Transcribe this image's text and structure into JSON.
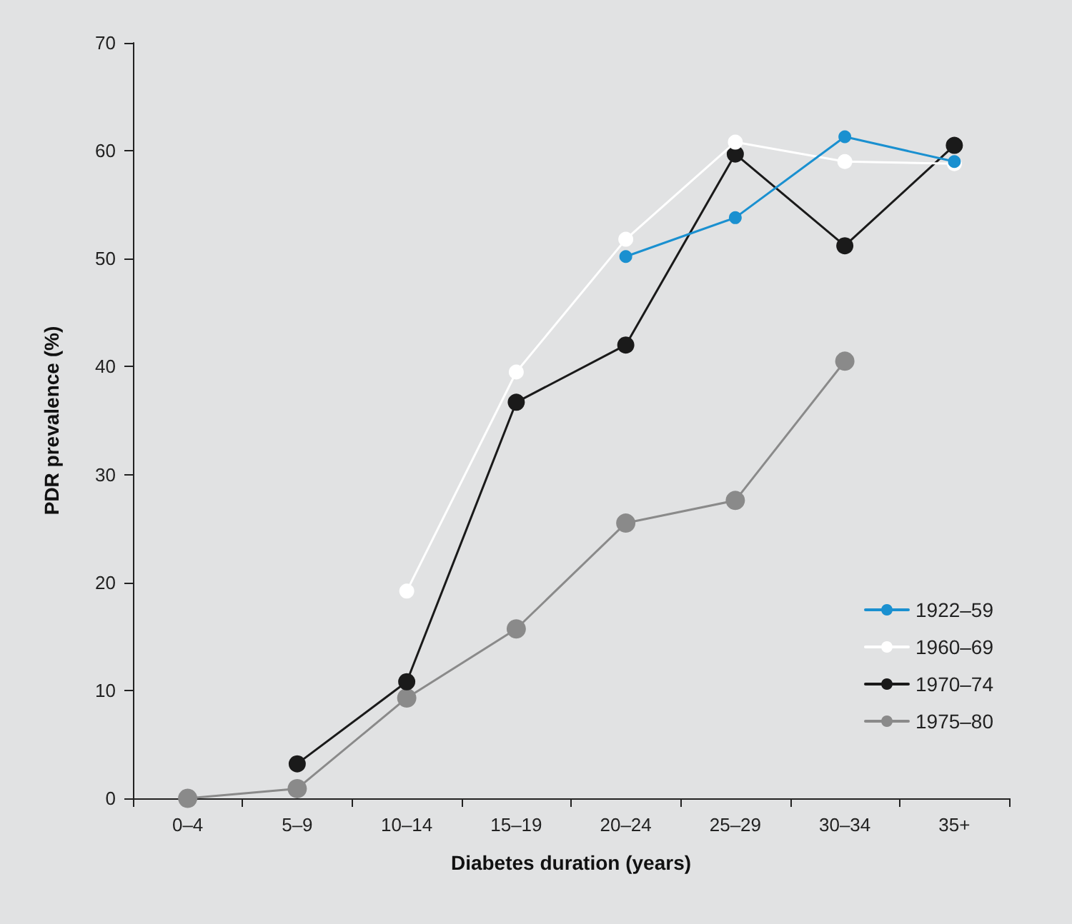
{
  "chart_data": {
    "type": "line",
    "xlabel": "Diabetes duration (years)",
    "ylabel": "PDR prevalence (%)",
    "categories": [
      "0–4",
      "5–9",
      "10–14",
      "15–19",
      "20–24",
      "25–29",
      "30–34",
      "35+"
    ],
    "series": [
      {
        "name": "1922–59",
        "color": "#1a90d0",
        "values": [
          null,
          null,
          null,
          null,
          50.2,
          53.8,
          61.3,
          59.0
        ]
      },
      {
        "name": "1960–69",
        "color": "#ffffff",
        "values": [
          null,
          null,
          19.2,
          39.5,
          51.8,
          60.8,
          59.0,
          58.8
        ]
      },
      {
        "name": "1970–74",
        "color": "#1a1a1a",
        "values": [
          null,
          3.2,
          10.8,
          36.7,
          42.0,
          59.7,
          51.2,
          60.5
        ]
      },
      {
        "name": "1975–80",
        "color": "#8a8a8a",
        "values": [
          0,
          0.9,
          9.3,
          15.7,
          25.5,
          27.6,
          40.5,
          null
        ]
      }
    ],
    "ylim": [
      0,
      70
    ],
    "yticks": [
      0,
      10,
      20,
      30,
      40,
      50,
      60,
      70
    ],
    "grid": false,
    "legend": "bottom right",
    "marker": "circle",
    "line_style": "solid"
  }
}
